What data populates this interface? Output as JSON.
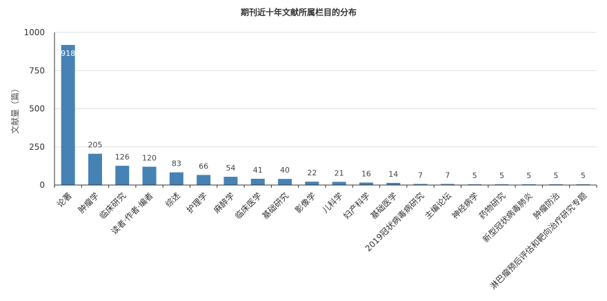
{
  "chart_data": {
    "type": "bar",
    "title": "期刊近十年文献所属栏目的分布",
    "xlabel": "",
    "ylabel": "文献量（篇）",
    "ylim": [
      0,
      1000
    ],
    "yticks": [
      0,
      250,
      500,
      750,
      1000
    ],
    "grid": true,
    "bar_color": "#4682b4",
    "categories": [
      "论著",
      "肿瘤学",
      "临床研究",
      "读者·作者·编者",
      "综述",
      "护理学",
      "麻醉学",
      "临床医学",
      "基础研究",
      "影像学",
      "儿科学",
      "妇产科学",
      "基础医学",
      "2019冠状病毒病研究",
      "主编论坛",
      "神经病学",
      "药物研究",
      "新型冠状病毒肺炎",
      "肿瘤防治",
      "淋巴瘤预后评估和靶向治疗研究专题"
    ],
    "values": [
      918,
      205,
      126,
      120,
      83,
      66,
      54,
      41,
      40,
      22,
      21,
      16,
      14,
      7,
      7,
      5,
      5,
      5,
      5,
      5
    ]
  }
}
